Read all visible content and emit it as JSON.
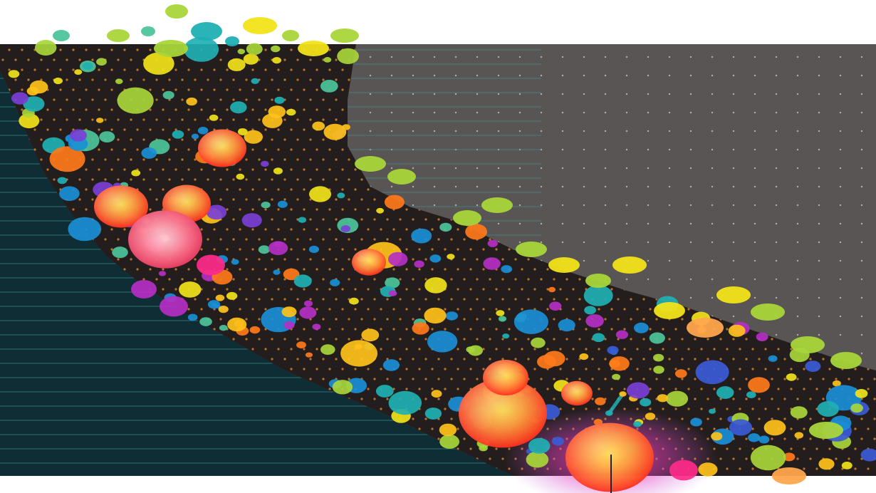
{
  "colors": {
    "page_background": "#ffffff",
    "ocean": "#0f2d34",
    "ocean_line": "#3f8f95",
    "land_background": "#5a5555",
    "land_dot": "#d7d2cc",
    "state_fill": "#241d1d",
    "grid_dot": "#e08a2e",
    "accent_palette": [
      "#ff3d1f",
      "#ff7a1a",
      "#ffc21a",
      "#f2e31a",
      "#a9d63a",
      "#4dc49a",
      "#1fb0b3",
      "#1a8fd6",
      "#3b5bd6",
      "#7a3fd6",
      "#b52fc4",
      "#ff2a8a"
    ]
  },
  "icons": {
    "map": "california-dot-map-icon",
    "marker": "hotspot-marker-icon"
  }
}
